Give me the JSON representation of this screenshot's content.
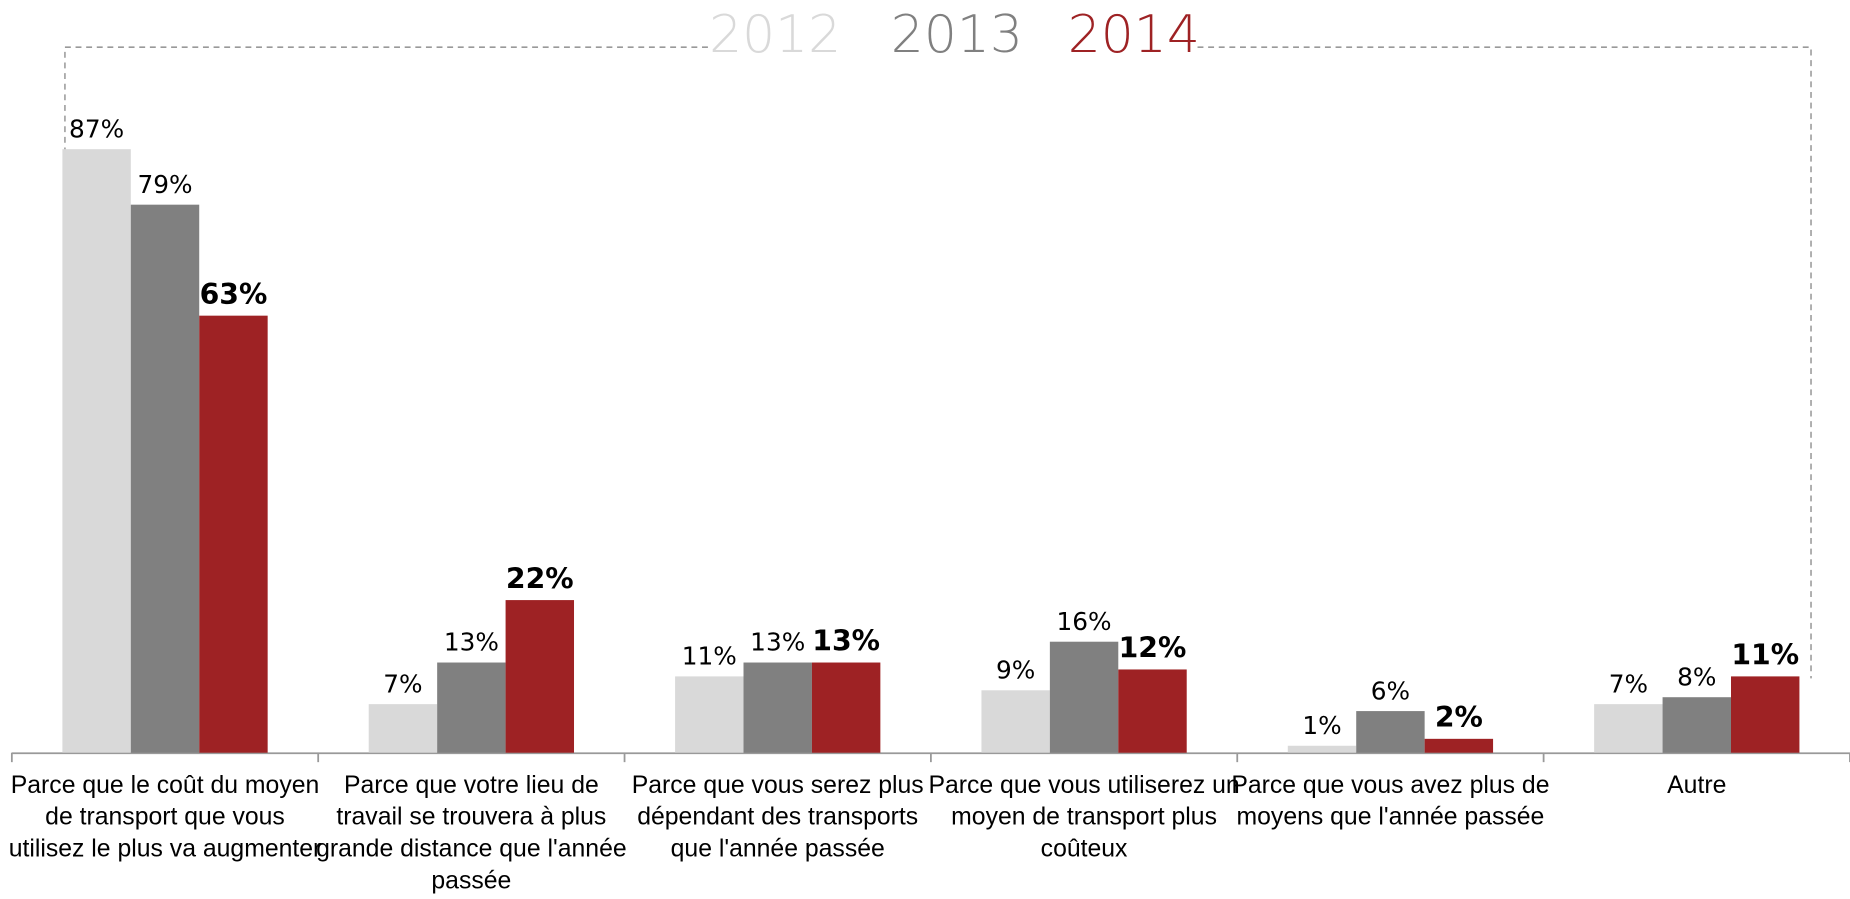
{
  "chart_data": {
    "type": "bar",
    "categories": [
      "Parce que le coût du moyen de transport que vous utilisez le plus va augmenter",
      "Parce que votre lieu de travail se trouvera à plus grande distance que l'année passée",
      "Parce que vous serez plus dépendant des transports que l'année passée",
      "Parce que vous utiliserez un moyen de transport plus coûteux",
      "Parce que vous avez plus de moyens que l'année passée",
      "Autre"
    ],
    "series": [
      {
        "name": "2012",
        "color": "#d9d9d9",
        "values": [
          87,
          7,
          11,
          9,
          1,
          7
        ],
        "value_labels": [
          "87%",
          "7%",
          "11%",
          "9%",
          "1%",
          "7%"
        ]
      },
      {
        "name": "2013",
        "color": "#808080",
        "values": [
          79,
          13,
          13,
          16,
          6,
          8
        ],
        "value_labels": [
          "79%",
          "13%",
          "13%",
          "16%",
          "6%",
          "8%"
        ]
      },
      {
        "name": "2014",
        "color": "#9e2224",
        "values": [
          63,
          22,
          13,
          12,
          2,
          11
        ],
        "value_labels": [
          "63%",
          "22%",
          "13%",
          "12%",
          "2%",
          "11%"
        ]
      }
    ],
    "ylim": [
      0,
      100
    ],
    "grid": false,
    "legend": "top"
  }
}
